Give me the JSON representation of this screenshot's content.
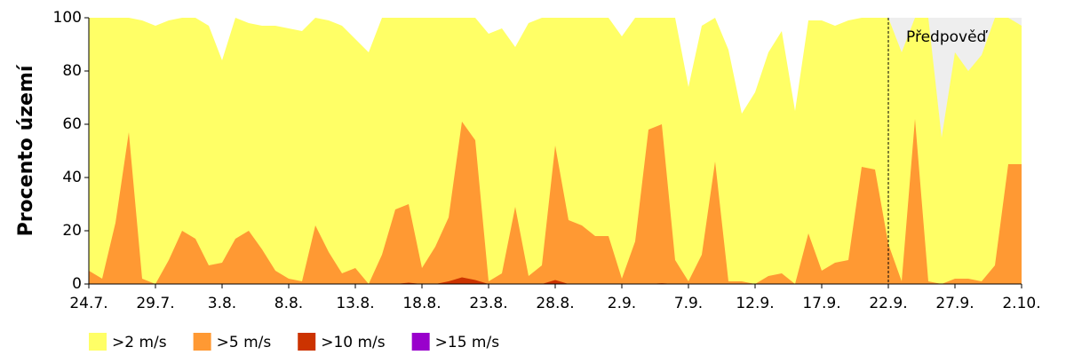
{
  "chart_data": {
    "type": "area",
    "y_label": "Procento území",
    "categories": [
      "24.7.",
      null,
      null,
      null,
      null,
      "29.7.",
      null,
      null,
      null,
      null,
      "3.8.",
      null,
      null,
      null,
      null,
      "8.8.",
      null,
      null,
      null,
      null,
      "13.8.",
      null,
      null,
      null,
      null,
      "18.8.",
      null,
      null,
      null,
      null,
      "23.8.",
      null,
      null,
      null,
      null,
      "28.8.",
      null,
      null,
      null,
      null,
      "2.9.",
      null,
      null,
      null,
      null,
      "7.9.",
      null,
      null,
      null,
      null,
      "12.9.",
      null,
      null,
      null,
      null,
      "17.9.",
      null,
      null,
      null,
      null,
      "22.9.",
      null,
      null,
      null,
      null,
      "27.9.",
      null,
      null,
      null,
      null,
      "2.10."
    ],
    "series": [
      {
        "name": ">2 m/s",
        "color": "#ffff66",
        "values": [
          100,
          100,
          100,
          100,
          99,
          97,
          99,
          100,
          100,
          97,
          84,
          100,
          98,
          97,
          97,
          96,
          95,
          100,
          99,
          97,
          92,
          87,
          100,
          100,
          100,
          100,
          100,
          100,
          100,
          100,
          94,
          96,
          89,
          98,
          100,
          100,
          100,
          100,
          100,
          100,
          93,
          100,
          100,
          100,
          100,
          74,
          97,
          100,
          88,
          64,
          72,
          87,
          95,
          65,
          99,
          99,
          97,
          99,
          100,
          100,
          100,
          87,
          100,
          100,
          55,
          87,
          80,
          86,
          100,
          100,
          97
        ]
      },
      {
        "name": ">5 m/s",
        "color": "#ff9933",
        "values": [
          5,
          2,
          23,
          57,
          2,
          0,
          9,
          20,
          17,
          7,
          8,
          17,
          20,
          13,
          5,
          2,
          1,
          22,
          12,
          4,
          6,
          0,
          11,
          28,
          30,
          6,
          14,
          25,
          61,
          54,
          1,
          4,
          29,
          3,
          7,
          52,
          24,
          22,
          18,
          18,
          2,
          16,
          58,
          60,
          9,
          1,
          11,
          46,
          1,
          1,
          0,
          3,
          4,
          0,
          19,
          5,
          8,
          9,
          44,
          43,
          15,
          1,
          62,
          1,
          0,
          2,
          2,
          1,
          7,
          45,
          45
        ]
      },
      {
        "name": ">10 m/s",
        "color": "#cc3300",
        "values": [
          0,
          0,
          0,
          0,
          0,
          0,
          0,
          0,
          0,
          0,
          0,
          0,
          0,
          0,
          0,
          0,
          0,
          0,
          0,
          0,
          0,
          0,
          0,
          0,
          0.5,
          0,
          0,
          1,
          2.5,
          1.5,
          0,
          0,
          0,
          0,
          0,
          1.5,
          0,
          0,
          0,
          0,
          0,
          0,
          0,
          0.3,
          0,
          0,
          0,
          0,
          0,
          0,
          0,
          0,
          0,
          0,
          0,
          0,
          0,
          0,
          0,
          0,
          0,
          0,
          0,
          0,
          0,
          0,
          0,
          0,
          0,
          0,
          0
        ]
      },
      {
        "name": ">15 m/s",
        "color": "#9900cc",
        "values": [
          0,
          0,
          0,
          0,
          0,
          0,
          0,
          0,
          0,
          0,
          0,
          0,
          0,
          0,
          0,
          0,
          0,
          0,
          0,
          0,
          0,
          0,
          0,
          0,
          0,
          0,
          0,
          0,
          0,
          0,
          0,
          0,
          0,
          0,
          0,
          0,
          0,
          0,
          0,
          0,
          0,
          0,
          0,
          0,
          0,
          0,
          0,
          0,
          0,
          0,
          0,
          0,
          0,
          0,
          0,
          0,
          0,
          0,
          0,
          0,
          0,
          0,
          0,
          0,
          0,
          0,
          0,
          0,
          0,
          0,
          0
        ]
      }
    ],
    "annotation": {
      "text": "Předpověď",
      "category_index": 60,
      "shade": "#eeeeee"
    },
    "ylim": [
      0,
      100
    ],
    "yticks": [
      0,
      20,
      40,
      60,
      80,
      100
    ]
  }
}
